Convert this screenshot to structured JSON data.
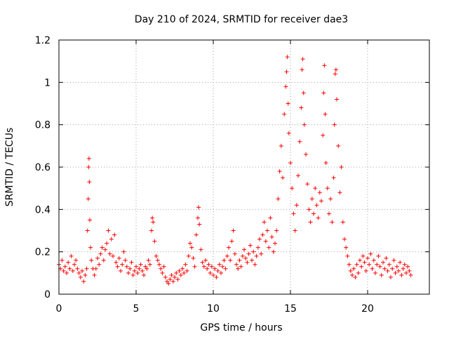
{
  "chart_data": {
    "type": "scatter",
    "title": "Day 210 of 2024, SRMTID for receiver dae3",
    "xlabel": "GPS time / hours",
    "ylabel": "SRMTID / TECUs",
    "xlim": [
      0,
      24
    ],
    "ylim": [
      0,
      1.2
    ],
    "x_ticks": [
      0,
      5,
      10,
      15,
      20
    ],
    "x_tick_labels": [
      "0",
      "5",
      "10",
      "15",
      "20"
    ],
    "y_ticks": [
      0,
      0.2,
      0.4,
      0.6,
      0.8,
      1.0,
      1.2
    ],
    "y_tick_labels": [
      "0",
      "0.2",
      "0.4",
      "0.6",
      "0.8",
      "1",
      "1.2"
    ],
    "grid": true,
    "marker": "plus",
    "series": [
      {
        "name": "SRMTID",
        "color": "#ff0000",
        "points": [
          [
            0.0,
            0.14
          ],
          [
            0.1,
            0.12
          ],
          [
            0.2,
            0.16
          ],
          [
            0.3,
            0.11
          ],
          [
            0.4,
            0.13
          ],
          [
            0.5,
            0.1
          ],
          [
            0.6,
            0.15
          ],
          [
            0.7,
            0.12
          ],
          [
            0.8,
            0.18
          ],
          [
            0.9,
            0.11
          ],
          [
            1.0,
            0.14
          ],
          [
            1.1,
            0.16
          ],
          [
            1.2,
            0.12
          ],
          [
            1.3,
            0.1
          ],
          [
            1.4,
            0.08
          ],
          [
            1.5,
            0.11
          ],
          [
            1.6,
            0.06
          ],
          [
            1.7,
            0.09
          ],
          [
            1.8,
            0.12
          ],
          [
            1.85,
            0.3
          ],
          [
            1.9,
            0.45
          ],
          [
            1.92,
            0.6
          ],
          [
            1.95,
            0.64
          ],
          [
            1.97,
            0.53
          ],
          [
            2.0,
            0.35
          ],
          [
            2.05,
            0.22
          ],
          [
            2.1,
            0.16
          ],
          [
            2.2,
            0.12
          ],
          [
            2.3,
            0.09
          ],
          [
            2.4,
            0.12
          ],
          [
            2.5,
            0.17
          ],
          [
            2.6,
            0.14
          ],
          [
            2.7,
            0.19
          ],
          [
            2.8,
            0.22
          ],
          [
            2.9,
            0.16
          ],
          [
            3.0,
            0.21
          ],
          [
            3.1,
            0.24
          ],
          [
            3.2,
            0.3
          ],
          [
            3.3,
            0.19
          ],
          [
            3.4,
            0.26
          ],
          [
            3.5,
            0.18
          ],
          [
            3.6,
            0.28
          ],
          [
            3.7,
            0.15
          ],
          [
            3.8,
            0.13
          ],
          [
            3.9,
            0.17
          ],
          [
            4.0,
            0.11
          ],
          [
            4.1,
            0.14
          ],
          [
            4.2,
            0.2
          ],
          [
            4.3,
            0.16
          ],
          [
            4.4,
            0.13
          ],
          [
            4.5,
            0.1
          ],
          [
            4.6,
            0.12
          ],
          [
            4.7,
            0.15
          ],
          [
            4.8,
            0.09
          ],
          [
            4.9,
            0.11
          ],
          [
            5.0,
            0.13
          ],
          [
            5.1,
            0.1
          ],
          [
            5.2,
            0.12
          ],
          [
            5.3,
            0.14
          ],
          [
            5.4,
            0.11
          ],
          [
            5.5,
            0.09
          ],
          [
            5.6,
            0.13
          ],
          [
            5.7,
            0.12
          ],
          [
            5.8,
            0.16
          ],
          [
            5.9,
            0.14
          ],
          [
            6.0,
            0.3
          ],
          [
            6.05,
            0.36
          ],
          [
            6.1,
            0.34
          ],
          [
            6.2,
            0.25
          ],
          [
            6.3,
            0.18
          ],
          [
            6.4,
            0.16
          ],
          [
            6.5,
            0.14
          ],
          [
            6.6,
            0.12
          ],
          [
            6.7,
            0.1
          ],
          [
            6.8,
            0.13
          ],
          [
            6.9,
            0.08
          ],
          [
            7.0,
            0.06
          ],
          [
            7.1,
            0.05
          ],
          [
            7.2,
            0.07
          ],
          [
            7.3,
            0.09
          ],
          [
            7.4,
            0.06
          ],
          [
            7.5,
            0.08
          ],
          [
            7.6,
            0.1
          ],
          [
            7.7,
            0.07
          ],
          [
            7.8,
            0.11
          ],
          [
            7.9,
            0.09
          ],
          [
            8.0,
            0.12
          ],
          [
            8.1,
            0.1
          ],
          [
            8.2,
            0.14
          ],
          [
            8.3,
            0.11
          ],
          [
            8.4,
            0.18
          ],
          [
            8.5,
            0.24
          ],
          [
            8.6,
            0.22
          ],
          [
            8.7,
            0.17
          ],
          [
            8.8,
            0.13
          ],
          [
            8.9,
            0.28
          ],
          [
            9.0,
            0.36
          ],
          [
            9.05,
            0.41
          ],
          [
            9.1,
            0.33
          ],
          [
            9.2,
            0.21
          ],
          [
            9.3,
            0.15
          ],
          [
            9.4,
            0.13
          ],
          [
            9.5,
            0.16
          ],
          [
            9.6,
            0.12
          ],
          [
            9.7,
            0.14
          ],
          [
            9.8,
            0.1
          ],
          [
            9.9,
            0.13
          ],
          [
            10.0,
            0.09
          ],
          [
            10.1,
            0.12
          ],
          [
            10.2,
            0.08
          ],
          [
            10.3,
            0.11
          ],
          [
            10.4,
            0.14
          ],
          [
            10.5,
            0.1
          ],
          [
            10.6,
            0.13
          ],
          [
            10.7,
            0.16
          ],
          [
            10.8,
            0.12
          ],
          [
            10.9,
            0.18
          ],
          [
            11.0,
            0.22
          ],
          [
            11.1,
            0.16
          ],
          [
            11.2,
            0.25
          ],
          [
            11.3,
            0.3
          ],
          [
            11.4,
            0.19
          ],
          [
            11.5,
            0.14
          ],
          [
            11.6,
            0.12
          ],
          [
            11.7,
            0.16
          ],
          [
            11.8,
            0.13
          ],
          [
            11.9,
            0.18
          ],
          [
            12.0,
            0.21
          ],
          [
            12.1,
            0.17
          ],
          [
            12.2,
            0.15
          ],
          [
            12.3,
            0.19
          ],
          [
            12.4,
            0.23
          ],
          [
            12.5,
            0.16
          ],
          [
            12.6,
            0.2
          ],
          [
            12.7,
            0.14
          ],
          [
            12.8,
            0.18
          ],
          [
            12.9,
            0.22
          ],
          [
            13.0,
            0.26
          ],
          [
            13.1,
            0.19
          ],
          [
            13.2,
            0.28
          ],
          [
            13.3,
            0.34
          ],
          [
            13.4,
            0.25
          ],
          [
            13.5,
            0.3
          ],
          [
            13.6,
            0.22
          ],
          [
            13.7,
            0.36
          ],
          [
            13.8,
            0.27
          ],
          [
            13.9,
            0.2
          ],
          [
            14.0,
            0.24
          ],
          [
            14.1,
            0.3
          ],
          [
            14.2,
            0.45
          ],
          [
            14.3,
            0.58
          ],
          [
            14.4,
            0.7
          ],
          [
            14.5,
            0.55
          ],
          [
            14.6,
            0.85
          ],
          [
            14.7,
            0.98
          ],
          [
            14.75,
            1.05
          ],
          [
            14.8,
            1.12
          ],
          [
            14.85,
            0.9
          ],
          [
            14.9,
            0.76
          ],
          [
            15.0,
            0.62
          ],
          [
            15.1,
            0.5
          ],
          [
            15.2,
            0.38
          ],
          [
            15.3,
            0.3
          ],
          [
            15.4,
            0.42
          ],
          [
            15.5,
            0.56
          ],
          [
            15.6,
            0.72
          ],
          [
            15.7,
            0.88
          ],
          [
            15.75,
            1.06
          ],
          [
            15.8,
            1.11
          ],
          [
            15.85,
            0.95
          ],
          [
            15.9,
            0.8
          ],
          [
            16.0,
            0.66
          ],
          [
            16.1,
            0.52
          ],
          [
            16.2,
            0.4
          ],
          [
            16.3,
            0.34
          ],
          [
            16.4,
            0.45
          ],
          [
            16.5,
            0.38
          ],
          [
            16.6,
            0.5
          ],
          [
            16.7,
            0.42
          ],
          [
            16.8,
            0.36
          ],
          [
            16.9,
            0.48
          ],
          [
            17.0,
            0.44
          ],
          [
            17.1,
            0.75
          ],
          [
            17.15,
            0.95
          ],
          [
            17.2,
            1.08
          ],
          [
            17.25,
            0.85
          ],
          [
            17.3,
            0.62
          ],
          [
            17.4,
            0.5
          ],
          [
            17.5,
            0.38
          ],
          [
            17.6,
            0.45
          ],
          [
            17.7,
            0.34
          ],
          [
            17.8,
            0.55
          ],
          [
            17.85,
            0.8
          ],
          [
            17.9,
            1.04
          ],
          [
            17.95,
            1.06
          ],
          [
            18.0,
            0.92
          ],
          [
            18.1,
            0.7
          ],
          [
            18.2,
            0.48
          ],
          [
            18.3,
            0.6
          ],
          [
            18.4,
            0.34
          ],
          [
            18.5,
            0.26
          ],
          [
            18.6,
            0.22
          ],
          [
            18.7,
            0.18
          ],
          [
            18.8,
            0.14
          ],
          [
            18.9,
            0.11
          ],
          [
            19.0,
            0.09
          ],
          [
            19.1,
            0.12
          ],
          [
            19.2,
            0.08
          ],
          [
            19.3,
            0.14
          ],
          [
            19.4,
            0.1
          ],
          [
            19.5,
            0.16
          ],
          [
            19.6,
            0.13
          ],
          [
            19.7,
            0.18
          ],
          [
            19.8,
            0.15
          ],
          [
            19.9,
            0.11
          ],
          [
            20.0,
            0.17
          ],
          [
            20.1,
            0.14
          ],
          [
            20.2,
            0.19
          ],
          [
            20.3,
            0.12
          ],
          [
            20.4,
            0.16
          ],
          [
            20.5,
            0.1
          ],
          [
            20.6,
            0.14
          ],
          [
            20.7,
            0.18
          ],
          [
            20.8,
            0.13
          ],
          [
            20.9,
            0.09
          ],
          [
            21.0,
            0.15
          ],
          [
            21.1,
            0.12
          ],
          [
            21.2,
            0.17
          ],
          [
            21.3,
            0.11
          ],
          [
            21.4,
            0.14
          ],
          [
            21.5,
            0.08
          ],
          [
            21.6,
            0.12
          ],
          [
            21.7,
            0.16
          ],
          [
            21.8,
            0.1
          ],
          [
            21.9,
            0.13
          ],
          [
            22.0,
            0.11
          ],
          [
            22.1,
            0.15
          ],
          [
            22.2,
            0.09
          ],
          [
            22.3,
            0.12
          ],
          [
            22.4,
            0.14
          ],
          [
            22.5,
            0.1
          ],
          [
            22.6,
            0.13
          ],
          [
            22.7,
            0.11
          ],
          [
            22.8,
            0.09
          ]
        ]
      }
    ]
  }
}
